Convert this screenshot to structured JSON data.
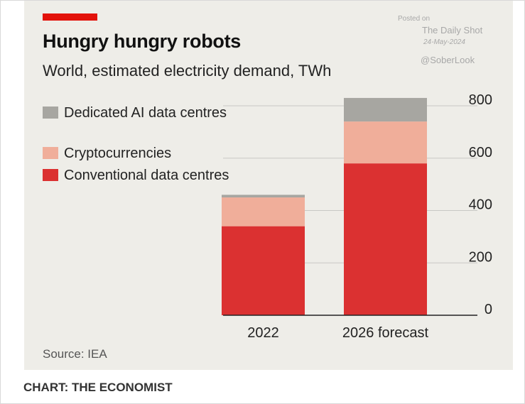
{
  "header": {
    "title": "Hungry hungry robots",
    "subtitle": "World, estimated electricity demand, TWh"
  },
  "watermark": {
    "posted_on": "Posted on",
    "site": "The Daily Shot",
    "date": "24-May-2024",
    "handle": "@SoberLook"
  },
  "footer": {
    "source": "Source: IEA",
    "credit": "CHART: THE ECONOMIST"
  },
  "colors": {
    "accent": "#e3120b",
    "panel_background": "#eeede8",
    "grid": "#c8c8c4"
  },
  "chart_data": {
    "type": "bar",
    "stacked": true,
    "categories": [
      "2022",
      "2026 forecast"
    ],
    "series": [
      {
        "name": "Conventional data centres",
        "color": "#db3131",
        "values": [
          340,
          580
        ]
      },
      {
        "name": "Cryptocurrencies",
        "color": "#f0ae9a",
        "values": [
          110,
          160
        ]
      },
      {
        "name": "Dedicated AI data centres",
        "color": "#a7a6a1",
        "values": [
          10,
          90
        ]
      }
    ],
    "legend": [
      {
        "label": "Dedicated AI data centres",
        "color": "#a7a6a1"
      },
      {
        "label": "Cryptocurrencies",
        "color": "#f0ae9a"
      },
      {
        "label": "Conventional data centres",
        "color": "#db3131"
      }
    ],
    "legend_position": "top-left",
    "y_ticks": [
      0,
      200,
      400,
      600,
      800
    ],
    "ylim": [
      0,
      800
    ],
    "y_axis_side": "right",
    "grid": true
  }
}
